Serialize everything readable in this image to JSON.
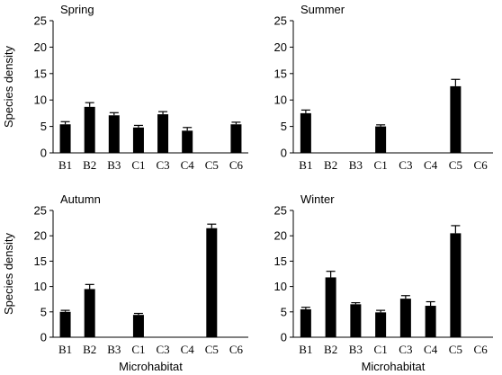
{
  "chart_data": [
    {
      "type": "bar",
      "title": "Spring",
      "categories": [
        "B1",
        "B2",
        "B3",
        "C1",
        "C3",
        "C4",
        "C5",
        "C6"
      ],
      "values": [
        5.4,
        8.7,
        7.1,
        4.8,
        7.3,
        4.2,
        0,
        5.4
      ],
      "errors": [
        0.5,
        0.8,
        0.5,
        0.4,
        0.5,
        0.6,
        0,
        0.4
      ],
      "xlabel": "",
      "ylabel": "Species density",
      "ylim": [
        0,
        25
      ],
      "yticks": [
        0,
        5,
        10,
        15,
        20,
        25
      ]
    },
    {
      "type": "bar",
      "title": "Summer",
      "categories": [
        "B1",
        "B2",
        "B3",
        "C1",
        "C3",
        "C4",
        "C5",
        "C6"
      ],
      "values": [
        7.5,
        0,
        0,
        5.0,
        0,
        0,
        12.6,
        0
      ],
      "errors": [
        0.6,
        0,
        0,
        0.3,
        0,
        0,
        1.3,
        0
      ],
      "xlabel": "",
      "ylabel": "",
      "ylim": [
        0,
        25
      ],
      "yticks": [
        0,
        5,
        10,
        15,
        20,
        25
      ]
    },
    {
      "type": "bar",
      "title": "Autumn",
      "categories": [
        "B1",
        "B2",
        "B3",
        "C1",
        "C3",
        "C4",
        "C5",
        "C6"
      ],
      "values": [
        5.0,
        9.5,
        0,
        4.4,
        0,
        0,
        21.5,
        0
      ],
      "errors": [
        0.3,
        0.9,
        0,
        0.3,
        0,
        0,
        0.8,
        0
      ],
      "xlabel": "Microhabitat",
      "ylabel": "Species density",
      "ylim": [
        0,
        25
      ],
      "yticks": [
        0,
        5,
        10,
        15,
        20,
        25
      ]
    },
    {
      "type": "bar",
      "title": "Winter",
      "categories": [
        "B1",
        "B2",
        "B3",
        "C1",
        "C3",
        "C4",
        "C5",
        "C6"
      ],
      "values": [
        5.5,
        11.8,
        6.5,
        4.9,
        7.6,
        6.2,
        20.5,
        0
      ],
      "errors": [
        0.4,
        1.2,
        0.3,
        0.4,
        0.6,
        0.8,
        1.5,
        0
      ],
      "xlabel": "Microhabitat",
      "ylabel": "",
      "ylim": [
        0,
        25
      ],
      "yticks": [
        0,
        5,
        10,
        15,
        20,
        25
      ]
    }
  ]
}
